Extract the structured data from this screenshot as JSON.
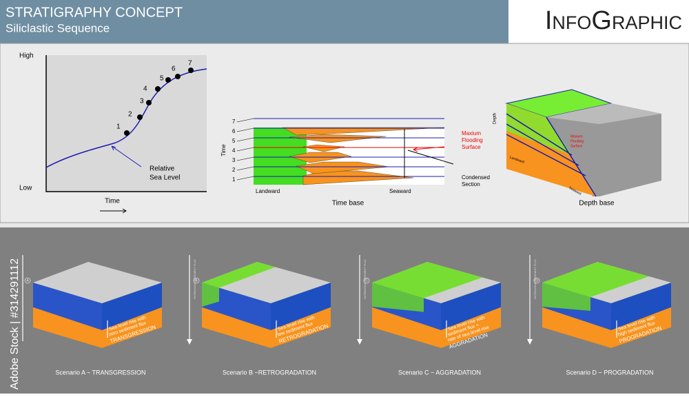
{
  "header": {
    "title": "STRATIGRAPHY CONCEPT",
    "subtitle": "Siliclastic Sequence",
    "brand": "InfoGraphic"
  },
  "sea_level_chart": {
    "y_high": "High",
    "y_low": "Low",
    "x_label": "Time",
    "curve_label": [
      "Relative",
      "Sea Level"
    ],
    "point_labels": [
      "1",
      "2",
      "3",
      "4",
      "5",
      "6",
      "7"
    ]
  },
  "time_base": {
    "y_label": "Time",
    "level_labels": [
      "1",
      "2",
      "3",
      "4",
      "5",
      "6",
      "7"
    ],
    "left_label": "Landward",
    "right_label": "Seaward",
    "caption": "Time base",
    "mfs_label": [
      "Maxium",
      "Flooding",
      "Surface"
    ],
    "condensed_label": [
      "Condensed",
      "Section"
    ]
  },
  "depth_base": {
    "y_label": "Depth",
    "left_label": "Landward",
    "right_label": "Seaward",
    "mfs_label": [
      "Maxium",
      "Flooding",
      "Surface"
    ],
    "caption": "Depth base"
  },
  "flux_label": "INCREASING SEDIMENT FLUX",
  "scenarios": [
    {
      "letter": "A",
      "note": [
        "Sea level rise with",
        "zero sediment flux"
      ],
      "process": "TRANSGRESSION",
      "caption": "Scenario A ~ TRANSGRESSION"
    },
    {
      "letter": "B",
      "note": [
        "Sea level rise with",
        "low sediment flux"
      ],
      "process": "RETROGRADATION",
      "caption": "Scenario B ~RETROGRADATION"
    },
    {
      "letter": "C",
      "note": [
        "Sea level rise with",
        "sediment flux =",
        "rate of sea level rise"
      ],
      "process": "AGGRADATION",
      "caption": "Scenario C ~ AGGRADATION"
    },
    {
      "letter": "D",
      "note": [
        "Sea level rise with",
        "high sediment flux"
      ],
      "process": "PROGRADATION",
      "caption": "Scenario D ~ PROGRADATION"
    }
  ],
  "watermark": "Adobe Stock | #314291112"
}
